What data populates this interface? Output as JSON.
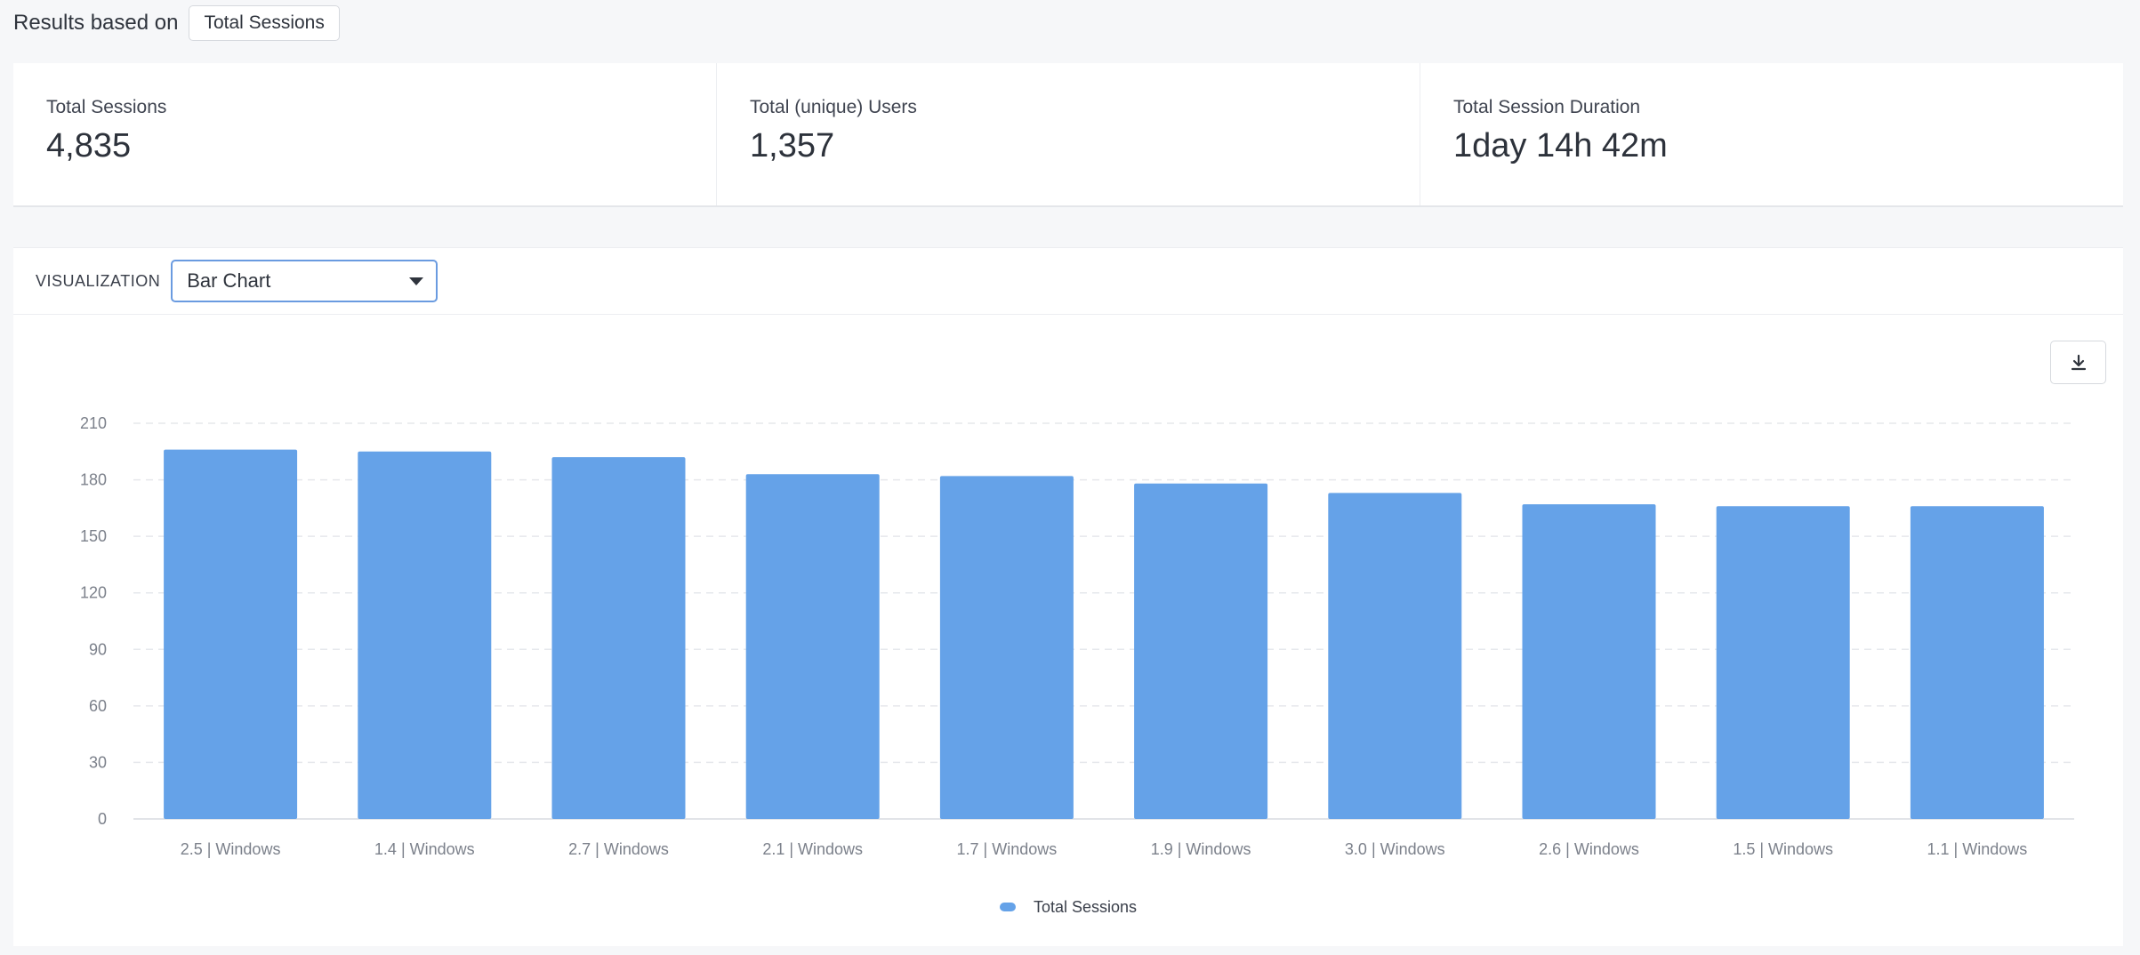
{
  "header": {
    "results_label": "Results based on",
    "metric_button": "Total Sessions"
  },
  "stats": [
    {
      "label": "Total Sessions",
      "value": "4,835"
    },
    {
      "label": "Total (unique) Users",
      "value": "1,357"
    },
    {
      "label": "Total Session Duration",
      "value": "1day 14h 42m"
    }
  ],
  "visualization": {
    "label": "VISUALIZATION",
    "selected": "Bar Chart"
  },
  "download_icon": "download-icon",
  "colors": {
    "bar": "#65a2e8",
    "select_border": "#6a9be0"
  },
  "chart_data": {
    "type": "bar",
    "categories": [
      "2.5 | Windows",
      "1.4 | Windows",
      "2.7 | Windows",
      "2.1 | Windows",
      "1.7 | Windows",
      "1.9 | Windows",
      "3.0 | Windows",
      "2.6 | Windows",
      "1.5 | Windows",
      "1.1 | Windows"
    ],
    "series": [
      {
        "name": "Total Sessions",
        "values": [
          196,
          195,
          192,
          183,
          182,
          178,
          173,
          167,
          166,
          166
        ]
      }
    ],
    "yticks": [
      0,
      30,
      60,
      90,
      120,
      150,
      180,
      210
    ],
    "ylim": [
      0,
      210
    ],
    "grid": true,
    "legend": "bottom-center"
  }
}
